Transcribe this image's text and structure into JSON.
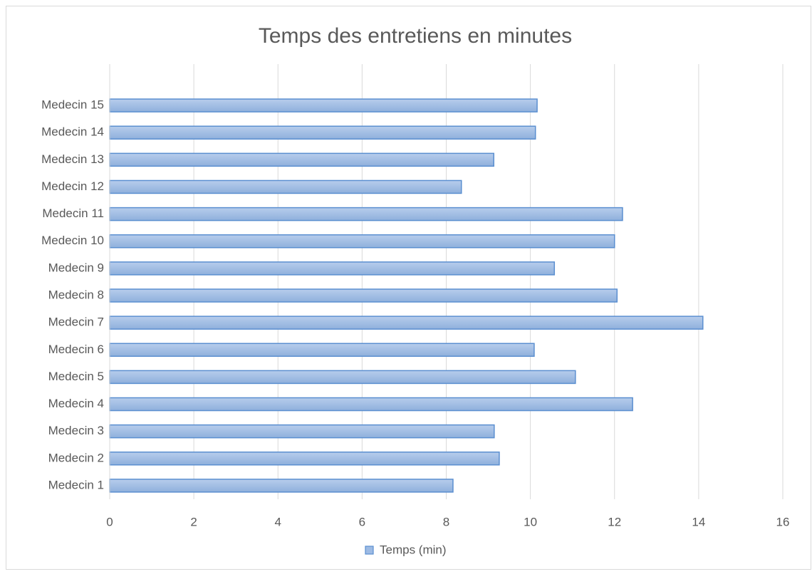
{
  "chart_data": {
    "type": "barh",
    "title": "Temps des entretiens en minutes",
    "categories": [
      "Medecin 1",
      "Medecin 2",
      "Medecin 3",
      "Medecin 4",
      "Medecin 5",
      "Medecin 6",
      "Medecin 7",
      "Medecin 8",
      "Medecin 9",
      "Medecin 10",
      "Medecin 11",
      "Medecin 12",
      "Medecin 13",
      "Medecin 14",
      "Medecin 15"
    ],
    "series": [
      {
        "name": "Temps (min)",
        "color": "#9dbbe4",
        "values": [
          8.16,
          9.26,
          9.14,
          12.43,
          11.07,
          10.09,
          14.1,
          12.06,
          10.57,
          12.0,
          12.19,
          8.36,
          9.13,
          10.12,
          10.16
        ]
      }
    ],
    "xlim": [
      0,
      16
    ],
    "xticks": [
      0,
      2,
      4,
      6,
      8,
      10,
      12,
      14,
      16
    ],
    "grid": true,
    "legend": "bottom"
  }
}
